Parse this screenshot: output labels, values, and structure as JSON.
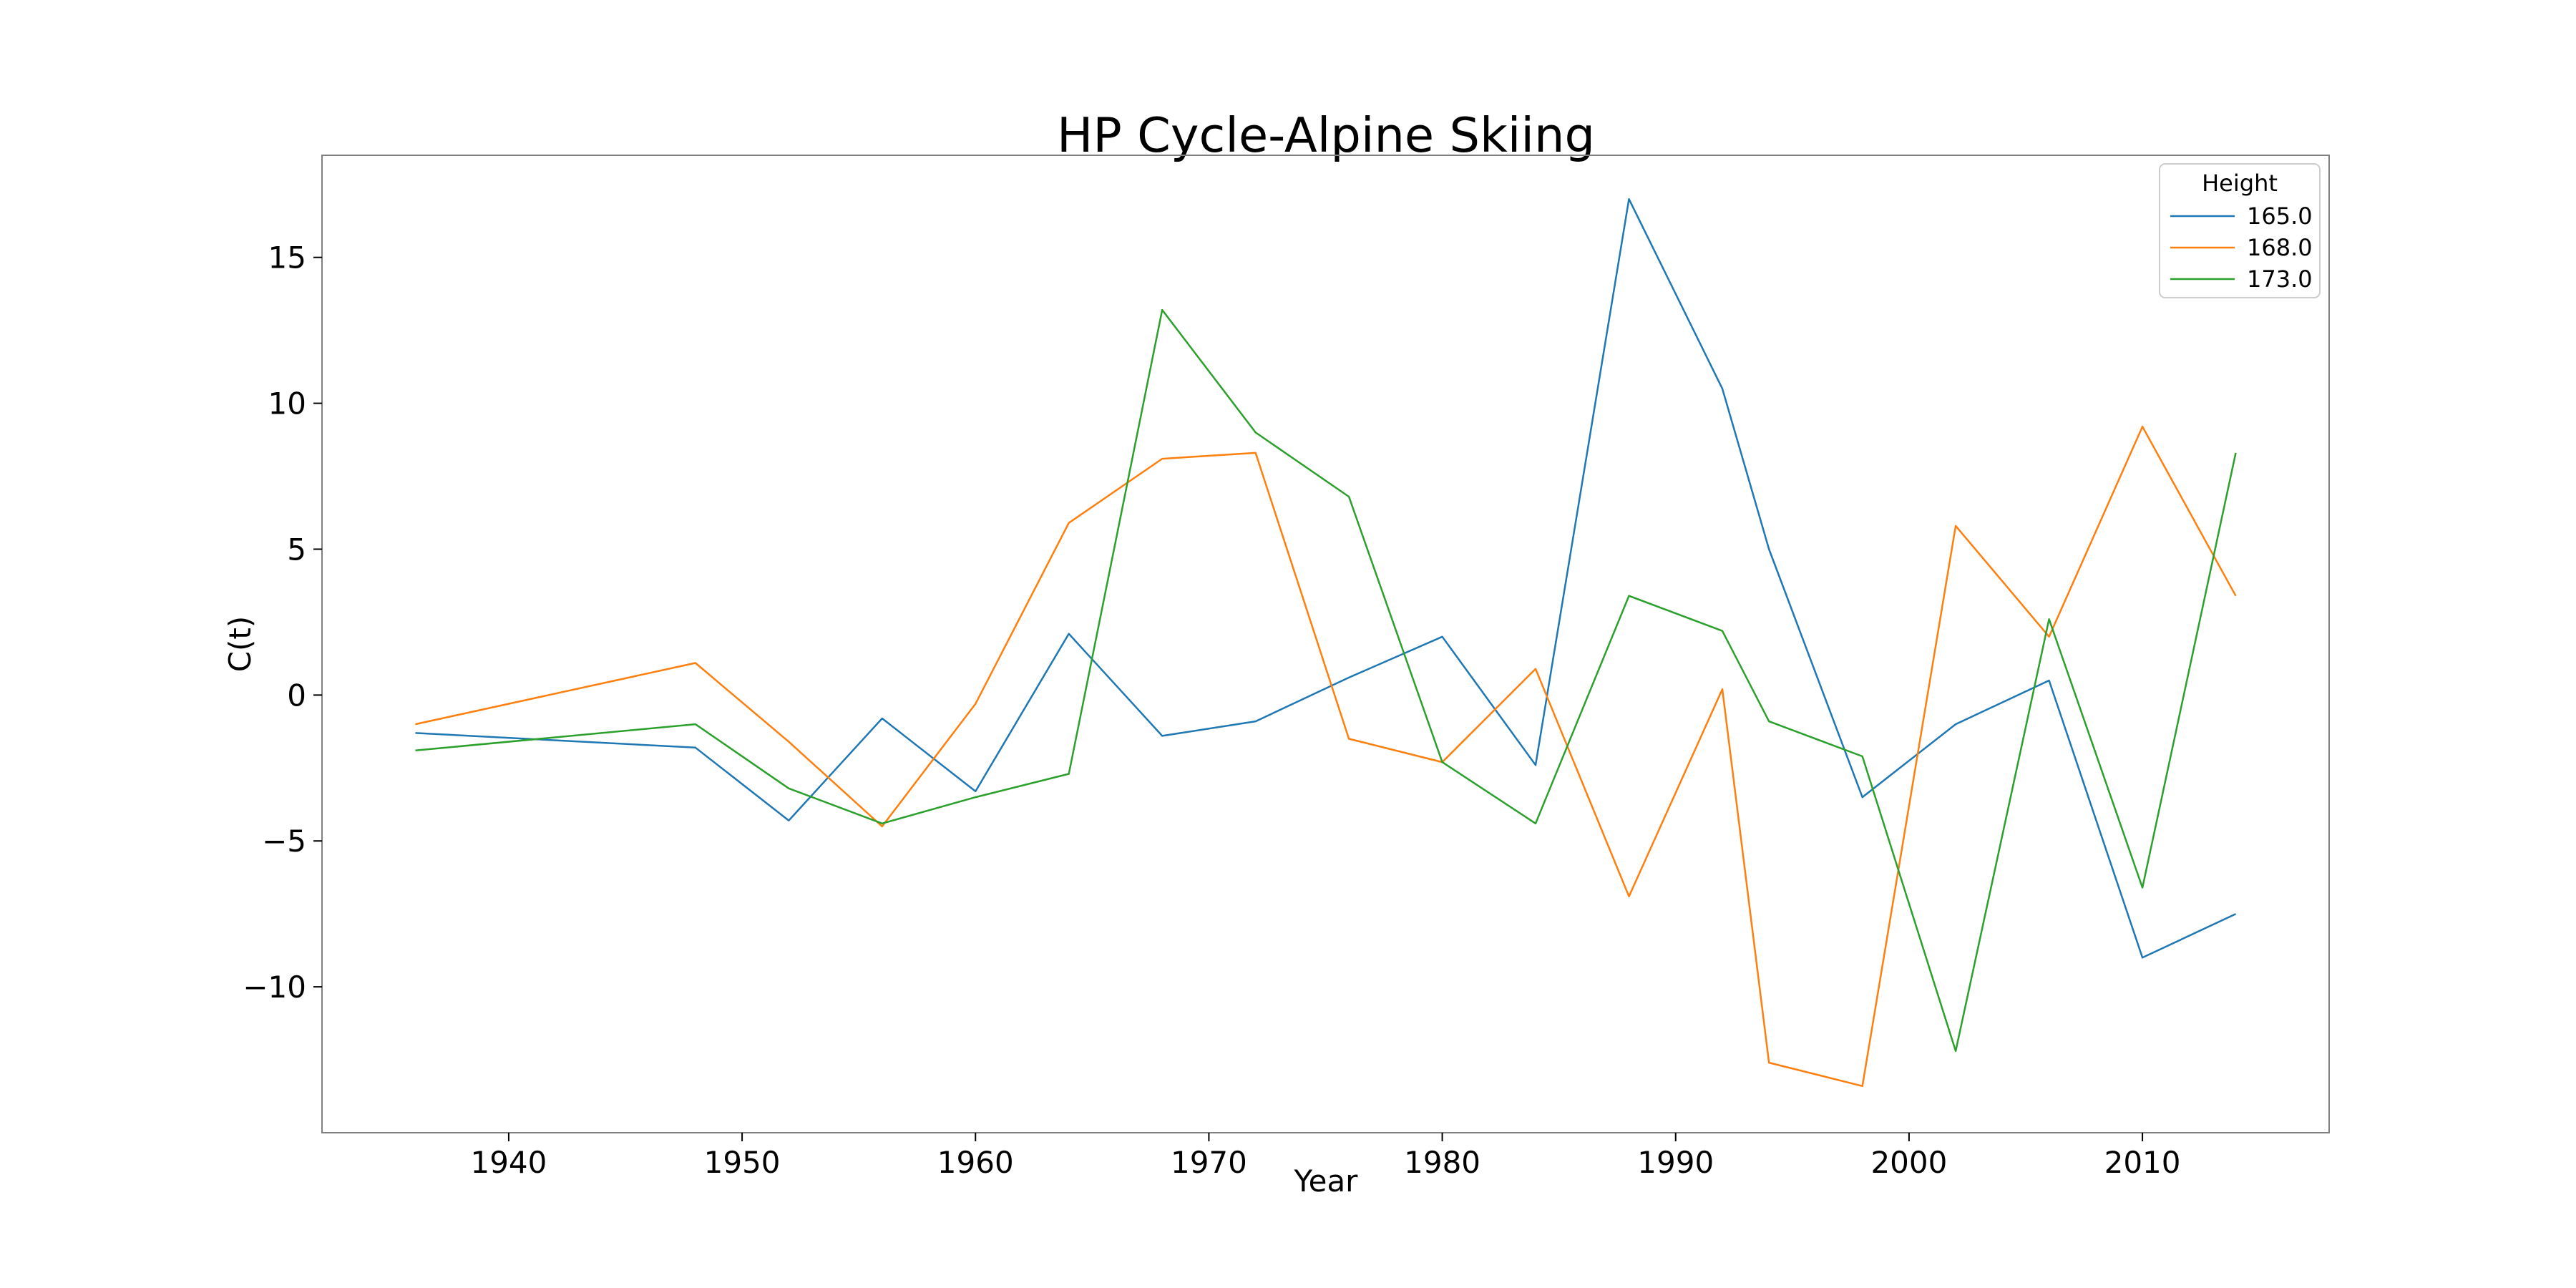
{
  "chart_data": {
    "type": "line",
    "title": "HP Cycle-Alpine Skiing",
    "xlabel": "Year",
    "ylabel": "C(t)",
    "xlim": [
      1932,
      2018
    ],
    "ylim": [
      -15,
      18.5
    ],
    "xticks": [
      1940,
      1950,
      1960,
      1970,
      1980,
      1990,
      2000,
      2010
    ],
    "yticks": [
      -10,
      -5,
      0,
      5,
      10,
      15
    ],
    "ytick_labels": [
      "−10",
      "−5",
      "0",
      "5",
      "10",
      "15"
    ],
    "grid": false,
    "legend": {
      "title": "Height",
      "position": "top-right"
    },
    "x": [
      1936,
      1948,
      1952,
      1956,
      1960,
      1964,
      1968,
      1972,
      1976,
      1980,
      1984,
      1988,
      1992,
      1994,
      1998,
      2002,
      2006,
      2010,
      2014
    ],
    "series": [
      {
        "name": "165.0",
        "color": "#1f77b4",
        "values": [
          -1.3,
          -1.8,
          -4.3,
          -0.8,
          -3.3,
          2.1,
          -1.4,
          -0.9,
          0.6,
          2.0,
          -2.4,
          17.0,
          10.5,
          5.0,
          -3.5,
          -1.0,
          0.5,
          -9.0,
          -7.5
        ]
      },
      {
        "name": "168.0",
        "color": "#ff7f0e",
        "values": [
          -1.0,
          1.1,
          -1.6,
          -4.5,
          -0.3,
          5.9,
          8.1,
          8.3,
          -1.5,
          -2.3,
          0.9,
          -6.9,
          0.2,
          -12.6,
          -13.4,
          5.8,
          2.0,
          9.2,
          3.4
        ]
      },
      {
        "name": "173.0",
        "color": "#2ca02c",
        "values": [
          -1.9,
          -1.0,
          -3.2,
          -4.4,
          -3.5,
          -2.7,
          13.2,
          9.0,
          6.8,
          -2.3,
          -4.4,
          3.4,
          2.2,
          -0.9,
          -2.1,
          -12.2,
          2.6,
          -6.6,
          8.3
        ]
      }
    ]
  }
}
